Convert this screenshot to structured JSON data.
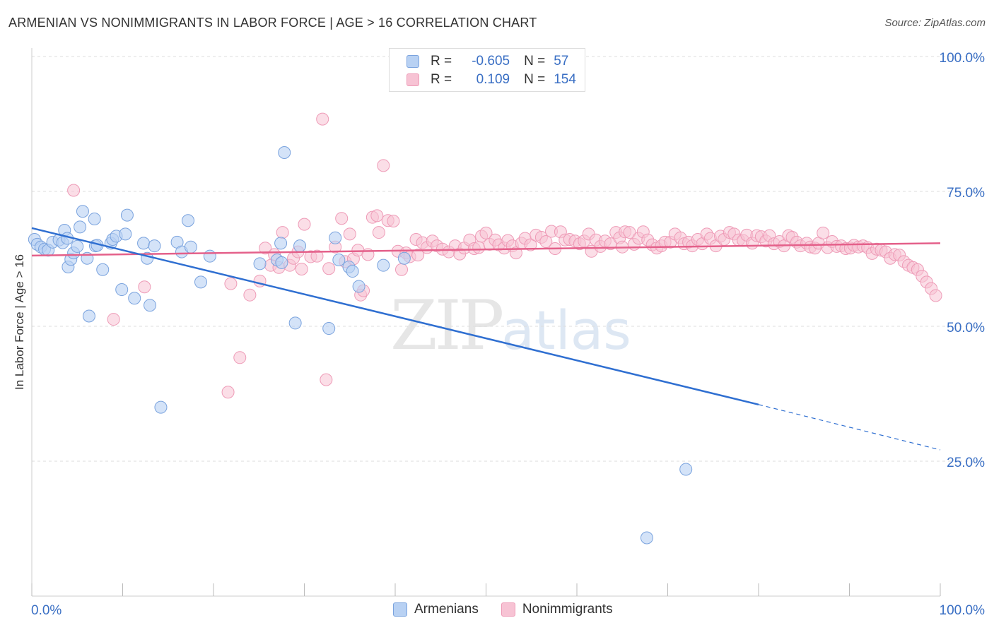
{
  "title": "ARMENIAN VS NONIMMIGRANTS IN LABOR FORCE | AGE > 16 CORRELATION CHART",
  "source": "Source: ZipAtlas.com",
  "watermark": {
    "zip": "ZIP",
    "atlas": "atlas"
  },
  "colors": {
    "armenians_fill": "#b8d1f3",
    "armenians_stroke": "#7aa3de",
    "armenians_line": "#2f6fd1",
    "nonimmigrants_fill": "#f7c3d4",
    "nonimmigrants_stroke": "#ee9bb7",
    "nonimmigrants_line": "#e4608a",
    "tick_label": "#3a6fc4",
    "grid": "#dddddd"
  },
  "legend": {
    "rows": [
      {
        "r_label": "R =",
        "r_value": "-0.605",
        "n_label": "N =",
        "n_value": "57"
      },
      {
        "r_label": "R =",
        "r_value": "0.109",
        "n_label": "N =",
        "n_value": "154"
      }
    ]
  },
  "bottom_legend": {
    "armenians": "Armenians",
    "nonimmigrants": "Nonimmigrants"
  },
  "chart_data": {
    "type": "scatter",
    "title": "ARMENIAN VS NONIMMIGRANTS IN LABOR FORCE | AGE > 16 CORRELATION CHART",
    "xlabel": "",
    "ylabel": "In Labor Force | Age > 16",
    "xlim": [
      0,
      100
    ],
    "ylim": [
      0,
      100
    ],
    "x_tick_labels": [
      "0.0%",
      "100.0%"
    ],
    "y_ticks": [
      25,
      50,
      75,
      100
    ],
    "y_tick_labels": [
      "25.0%",
      "50.0%",
      "75.0%",
      "100.0%"
    ],
    "grid": true,
    "legend_position": "top-center",
    "series": [
      {
        "name": "Armenians",
        "r": -0.605,
        "n": 57,
        "trend": {
          "x0": 0,
          "y0": 68.2,
          "x1": 80,
          "y1": 35.5,
          "dash_to_x": 100,
          "dash_to_y": 27.1
        },
        "points": [
          [
            0.3,
            66.1
          ],
          [
            0.6,
            65.2
          ],
          [
            1.0,
            64.7
          ],
          [
            1.4,
            64.3
          ],
          [
            1.8,
            64.1
          ],
          [
            2.3,
            65.6
          ],
          [
            3.0,
            66.0
          ],
          [
            3.4,
            65.5
          ],
          [
            3.6,
            67.8
          ],
          [
            3.9,
            66.3
          ],
          [
            4.0,
            61.0
          ],
          [
            4.3,
            62.4
          ],
          [
            4.6,
            63.6
          ],
          [
            5.0,
            64.8
          ],
          [
            5.3,
            68.4
          ],
          [
            5.6,
            71.3
          ],
          [
            6.1,
            62.6
          ],
          [
            6.3,
            51.9
          ],
          [
            6.9,
            69.9
          ],
          [
            7.0,
            64.9
          ],
          [
            7.2,
            65.0
          ],
          [
            7.8,
            60.5
          ],
          [
            8.7,
            65.4
          ],
          [
            8.9,
            66.1
          ],
          [
            9.3,
            66.7
          ],
          [
            9.9,
            56.8
          ],
          [
            10.3,
            67.1
          ],
          [
            10.5,
            70.6
          ],
          [
            11.3,
            55.2
          ],
          [
            12.3,
            65.4
          ],
          [
            12.7,
            62.6
          ],
          [
            13.0,
            53.9
          ],
          [
            13.5,
            64.9
          ],
          [
            14.2,
            35.0
          ],
          [
            16.0,
            65.6
          ],
          [
            16.5,
            63.8
          ],
          [
            17.2,
            69.6
          ],
          [
            17.5,
            64.7
          ],
          [
            18.6,
            58.2
          ],
          [
            19.6,
            63.0
          ],
          [
            25.1,
            61.6
          ],
          [
            27.0,
            62.3
          ],
          [
            27.4,
            65.4
          ],
          [
            27.5,
            61.8
          ],
          [
            27.8,
            82.2
          ],
          [
            29.0,
            50.6
          ],
          [
            29.5,
            64.9
          ],
          [
            32.7,
            49.6
          ],
          [
            33.4,
            66.4
          ],
          [
            33.8,
            62.3
          ],
          [
            34.9,
            61.0
          ],
          [
            35.3,
            60.2
          ],
          [
            36.0,
            57.4
          ],
          [
            38.7,
            61.3
          ],
          [
            41.0,
            62.6
          ],
          [
            72.0,
            23.5
          ],
          [
            67.7,
            10.8
          ]
        ]
      },
      {
        "name": "Nonimmigrants",
        "r": 0.109,
        "n": 154,
        "trend": {
          "x0": 0,
          "y0": 63.1,
          "x1": 100,
          "y1": 65.4
        },
        "points": [
          [
            4.6,
            75.2
          ],
          [
            9.0,
            51.3
          ],
          [
            12.4,
            57.3
          ],
          [
            21.6,
            37.8
          ],
          [
            21.9,
            57.9
          ],
          [
            22.9,
            44.2
          ],
          [
            24.0,
            55.8
          ],
          [
            25.1,
            58.4
          ],
          [
            25.7,
            64.5
          ],
          [
            26.3,
            61.3
          ],
          [
            26.7,
            63.3
          ],
          [
            27.2,
            60.9
          ],
          [
            27.6,
            67.4
          ],
          [
            28.4,
            61.3
          ],
          [
            28.8,
            62.6
          ],
          [
            29.3,
            63.8
          ],
          [
            29.7,
            60.6
          ],
          [
            30.0,
            68.9
          ],
          [
            30.7,
            62.9
          ],
          [
            31.4,
            63.0
          ],
          [
            32.0,
            88.4
          ],
          [
            32.4,
            40.1
          ],
          [
            32.7,
            60.7
          ],
          [
            33.4,
            64.7
          ],
          [
            34.1,
            70.0
          ],
          [
            34.5,
            62.0
          ],
          [
            35.0,
            67.1
          ],
          [
            35.4,
            62.5
          ],
          [
            35.9,
            64.1
          ],
          [
            36.2,
            55.8
          ],
          [
            36.5,
            56.6
          ],
          [
            37.0,
            63.3
          ],
          [
            37.5,
            70.2
          ],
          [
            38.0,
            70.5
          ],
          [
            38.2,
            67.4
          ],
          [
            38.7,
            79.8
          ],
          [
            39.2,
            69.6
          ],
          [
            39.8,
            69.5
          ],
          [
            40.3,
            63.9
          ],
          [
            40.7,
            60.5
          ],
          [
            41.2,
            63.6
          ],
          [
            41.6,
            62.9
          ],
          [
            42.3,
            66.1
          ],
          [
            42.5,
            63.2
          ],
          [
            43.0,
            65.5
          ],
          [
            43.5,
            64.6
          ],
          [
            44.1,
            65.8
          ],
          [
            44.6,
            64.9
          ],
          [
            45.2,
            64.3
          ],
          [
            45.9,
            63.8
          ],
          [
            46.6,
            64.9
          ],
          [
            47.1,
            63.4
          ],
          [
            47.6,
            64.5
          ],
          [
            48.2,
            66.0
          ],
          [
            48.7,
            64.4
          ],
          [
            49.2,
            64.6
          ],
          [
            49.5,
            66.7
          ],
          [
            50.0,
            67.3
          ],
          [
            50.4,
            65.2
          ],
          [
            51.0,
            66.0
          ],
          [
            51.4,
            65.1
          ],
          [
            52.0,
            64.5
          ],
          [
            52.4,
            65.9
          ],
          [
            52.9,
            64.9
          ],
          [
            53.3,
            63.6
          ],
          [
            53.9,
            65.4
          ],
          [
            54.3,
            66.3
          ],
          [
            54.9,
            65.1
          ],
          [
            55.5,
            66.9
          ],
          [
            56.1,
            66.5
          ],
          [
            56.6,
            65.7
          ],
          [
            57.2,
            67.6
          ],
          [
            57.6,
            64.4
          ],
          [
            58.2,
            67.5
          ],
          [
            58.7,
            66.0
          ],
          [
            59.2,
            66.1
          ],
          [
            59.8,
            65.8
          ],
          [
            60.3,
            65.3
          ],
          [
            60.8,
            65.8
          ],
          [
            61.3,
            67.1
          ],
          [
            61.6,
            63.9
          ],
          [
            62.1,
            66.0
          ],
          [
            62.6,
            64.8
          ],
          [
            63.1,
            65.8
          ],
          [
            63.7,
            65.3
          ],
          [
            64.3,
            67.4
          ],
          [
            64.7,
            66.4
          ],
          [
            65.3,
            67.5
          ],
          [
            65.8,
            67.4
          ],
          [
            66.3,
            65.2
          ],
          [
            66.8,
            66.3
          ],
          [
            67.3,
            67.5
          ],
          [
            67.8,
            66.0
          ],
          [
            68.3,
            65.1
          ],
          [
            68.8,
            64.5
          ],
          [
            69.3,
            64.9
          ],
          [
            69.7,
            65.6
          ],
          [
            70.3,
            65.6
          ],
          [
            70.8,
            67.1
          ],
          [
            71.4,
            66.4
          ],
          [
            71.8,
            65.3
          ],
          [
            72.3,
            65.6
          ],
          [
            72.7,
            64.9
          ],
          [
            73.3,
            66.1
          ],
          [
            73.8,
            65.3
          ],
          [
            74.3,
            67.1
          ],
          [
            74.7,
            66.3
          ],
          [
            75.3,
            64.9
          ],
          [
            75.8,
            66.7
          ],
          [
            76.2,
            66.1
          ],
          [
            76.8,
            67.4
          ],
          [
            77.3,
            67.1
          ],
          [
            77.8,
            66.0
          ],
          [
            78.3,
            65.9
          ],
          [
            78.7,
            66.9
          ],
          [
            79.3,
            65.4
          ],
          [
            79.8,
            66.8
          ],
          [
            80.3,
            66.6
          ],
          [
            80.8,
            65.8
          ],
          [
            81.2,
            66.8
          ],
          [
            81.7,
            65.3
          ],
          [
            82.3,
            65.7
          ],
          [
            82.8,
            64.9
          ],
          [
            83.3,
            66.8
          ],
          [
            83.7,
            66.5
          ],
          [
            84.2,
            65.6
          ],
          [
            84.6,
            64.9
          ],
          [
            85.3,
            65.4
          ],
          [
            85.7,
            64.7
          ],
          [
            86.2,
            64.5
          ],
          [
            86.6,
            65.4
          ],
          [
            87.1,
            67.3
          ],
          [
            87.6,
            64.6
          ],
          [
            88.1,
            65.7
          ],
          [
            88.6,
            64.8
          ],
          [
            89.1,
            64.9
          ],
          [
            89.6,
            64.4
          ],
          [
            90.1,
            64.5
          ],
          [
            90.5,
            65.0
          ],
          [
            91.0,
            64.7
          ],
          [
            91.5,
            64.9
          ],
          [
            92.0,
            64.6
          ],
          [
            92.5,
            63.5
          ],
          [
            93.0,
            64.3
          ],
          [
            93.5,
            64.1
          ],
          [
            94.0,
            63.8
          ],
          [
            94.5,
            62.6
          ],
          [
            95.0,
            63.3
          ],
          [
            95.5,
            63.2
          ],
          [
            96.0,
            62.0
          ],
          [
            96.5,
            61.3
          ],
          [
            97.0,
            60.9
          ],
          [
            97.5,
            60.5
          ],
          [
            98.0,
            59.3
          ],
          [
            98.5,
            58.2
          ],
          [
            99.0,
            57.0
          ],
          [
            99.5,
            55.7
          ],
          [
            65.0,
            64.7
          ]
        ]
      }
    ]
  }
}
